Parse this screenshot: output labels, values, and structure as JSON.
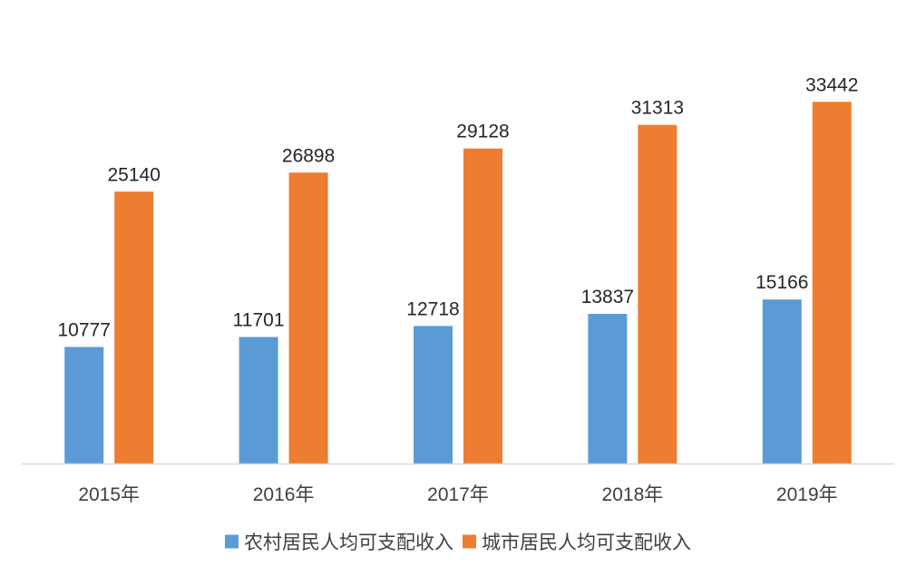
{
  "chart_data": {
    "type": "bar",
    "categories": [
      "2015年",
      "2016年",
      "2017年",
      "2018年",
      "2019年"
    ],
    "series": [
      {
        "name": "农村居民人均可支配收入",
        "color": "#5B9BD5",
        "values": [
          10777,
          11701,
          12718,
          13837,
          15166
        ]
      },
      {
        "name": "城市居民人均可支配收入",
        "color": "#ED7D31",
        "values": [
          25140,
          26898,
          29128,
          31313,
          33442
        ]
      }
    ],
    "title": "",
    "xlabel": "",
    "ylabel": "",
    "ylim": [
      0,
      39000
    ],
    "grid": false,
    "data_labels": true,
    "legend_position": "bottom",
    "axis_color": "#D9D9D9"
  }
}
